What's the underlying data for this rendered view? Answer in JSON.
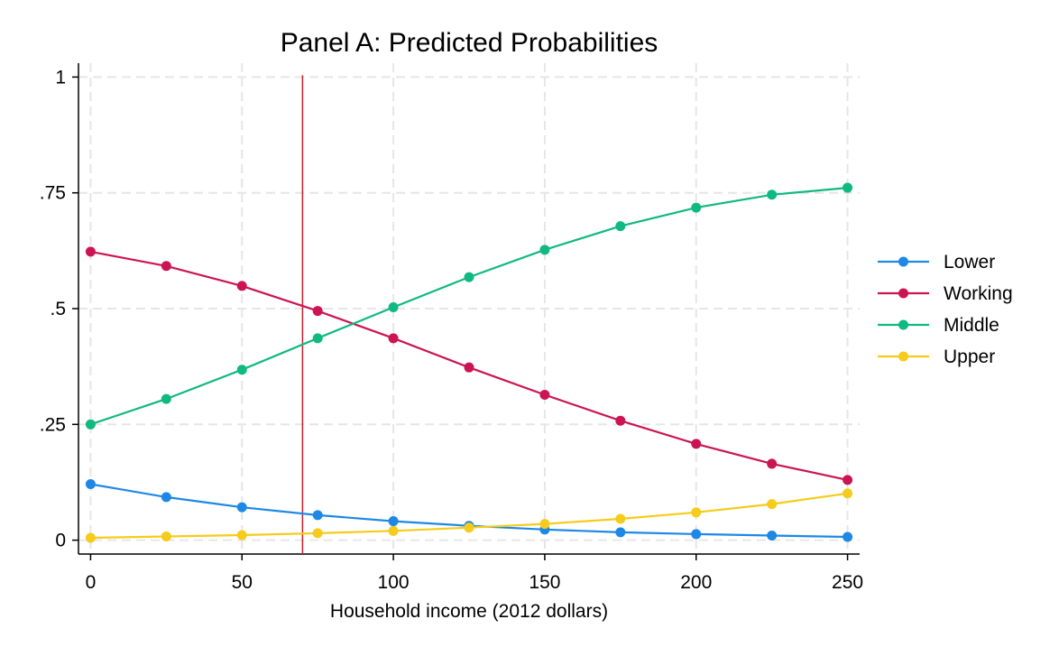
{
  "chart_data": {
    "type": "line",
    "title": "Panel A: Predicted Probabilities",
    "xlabel": "Household income (2012 dollars)",
    "ylabel": "",
    "x": [
      0,
      25,
      50,
      75,
      100,
      125,
      150,
      175,
      200,
      225,
      250
    ],
    "xticks": [
      0,
      50,
      100,
      150,
      200,
      250
    ],
    "xtick_labels": [
      "0",
      "50",
      "100",
      "150",
      "200",
      "250"
    ],
    "yticks": [
      0,
      0.25,
      0.5,
      0.75,
      1
    ],
    "ytick_labels": [
      "0",
      ".25",
      ".5",
      ".75",
      "1"
    ],
    "xlim": [
      -4,
      254
    ],
    "ylim": [
      -0.03,
      1.03
    ],
    "grid": true,
    "legend_position": "right",
    "reference_line_x": 70,
    "reference_line_color": "#cc1f2f",
    "series": [
      {
        "name": "Lower",
        "color": "#1e88e5",
        "values": [
          0.121,
          0.093,
          0.071,
          0.054,
          0.041,
          0.031,
          0.023,
          0.017,
          0.013,
          0.01,
          0.007
        ]
      },
      {
        "name": "Working",
        "color": "#cc1452",
        "values": [
          0.623,
          0.592,
          0.549,
          0.495,
          0.436,
          0.373,
          0.314,
          0.258,
          0.208,
          0.165,
          0.13
        ]
      },
      {
        "name": "Middle",
        "color": "#10b981",
        "values": [
          0.25,
          0.305,
          0.368,
          0.436,
          0.503,
          0.568,
          0.627,
          0.678,
          0.718,
          0.746,
          0.761
        ]
      },
      {
        "name": "Upper",
        "color": "#f5cc1b",
        "values": [
          0.005,
          0.008,
          0.011,
          0.015,
          0.02,
          0.027,
          0.035,
          0.046,
          0.06,
          0.078,
          0.101
        ]
      }
    ]
  }
}
